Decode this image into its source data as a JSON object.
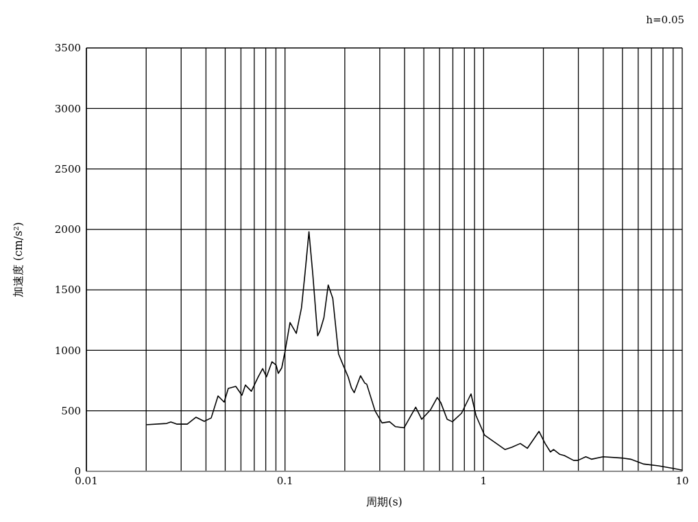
{
  "chart_data": {
    "type": "line",
    "xlabel": "周期(s)",
    "ylabel": "加速度 (cm/s²)",
    "annotations": [
      "h=0.05"
    ],
    "log": "x",
    "grid": true,
    "marker": "none",
    "line_style": "solid",
    "xlim": [
      0.01,
      10
    ],
    "ylim": [
      0,
      3500
    ],
    "xticks": [
      0.01,
      {
        "value": 0.02,
        "label": null
      },
      {
        "value": 0.03,
        "label": null
      },
      {
        "value": 0.04,
        "label": null
      },
      {
        "value": 0.05,
        "label": null
      },
      {
        "value": 0.06,
        "label": null
      },
      {
        "value": 0.07,
        "label": null
      },
      {
        "value": 0.08,
        "label": null
      },
      {
        "value": 0.09,
        "label": null
      },
      0.1,
      {
        "value": 0.2,
        "label": null
      },
      {
        "value": 0.3,
        "label": null
      },
      {
        "value": 0.4,
        "label": null
      },
      {
        "value": 0.5,
        "label": null
      },
      {
        "value": 0.6,
        "label": null
      },
      {
        "value": 0.7,
        "label": null
      },
      {
        "value": 0.8,
        "label": null
      },
      {
        "value": 0.9,
        "label": null
      },
      1,
      {
        "value": 2,
        "label": null
      },
      {
        "value": 3,
        "label": null
      },
      {
        "value": 4,
        "label": null
      },
      {
        "value": 5,
        "label": null
      },
      {
        "value": 6,
        "label": null
      },
      {
        "value": 7,
        "label": null
      },
      {
        "value": 8,
        "label": null
      },
      {
        "value": 9,
        "label": null
      },
      10
    ],
    "yticks": [
      0,
      500,
      1000,
      1500,
      2000,
      2500,
      3000,
      3500
    ],
    "x": [
      0.02,
      0.0254,
      0.0266,
      0.0286,
      0.0322,
      0.0356,
      0.0392,
      0.0425,
      0.046,
      0.0494,
      0.0518,
      0.0565,
      0.0607,
      0.0632,
      0.0677,
      0.0733,
      0.0772,
      0.0807,
      0.086,
      0.0902,
      0.0925,
      0.0963,
      0.1,
      0.106,
      0.114,
      0.121,
      0.126,
      0.132,
      0.138,
      0.146,
      0.15,
      0.157,
      0.165,
      0.174,
      0.186,
      0.196,
      0.208,
      0.216,
      0.223,
      0.24,
      0.252,
      0.258,
      0.284,
      0.308,
      0.336,
      0.359,
      0.398,
      0.455,
      0.488,
      0.541,
      0.584,
      0.608,
      0.655,
      0.696,
      0.774,
      0.864,
      0.916,
      1.01,
      1.28,
      1.39,
      1.53,
      1.66,
      1.9,
      2.04,
      2.17,
      2.25,
      2.42,
      2.55,
      2.84,
      2.98,
      3.27,
      3.49,
      4.0,
      4.96,
      5.5,
      6.4,
      7.6,
      8.9,
      10
    ],
    "series": [
      {
        "color": "#000000",
        "values": [
          385,
          396,
          408,
          390,
          390,
          447,
          413,
          441,
          623,
          572,
          685,
          702,
          629,
          713,
          662,
          781,
          849,
          781,
          906,
          878,
          810,
          855,
          990,
          1230,
          1140,
          1350,
          1630,
          1980,
          1630,
          1120,
          1160,
          1270,
          1540,
          1430,
          970,
          880,
          780,
          690,
          650,
          790,
          730,
          720,
          500,
          400,
          410,
          370,
          360,
          530,
          430,
          510,
          610,
          570,
          430,
          410,
          480,
          640,
          460,
          300,
          180,
          200,
          230,
          190,
          330,
          230,
          160,
          180,
          140,
          130,
          90,
          90,
          120,
          100,
          120,
          110,
          100,
          60,
          45,
          25,
          10
        ]
      }
    ]
  }
}
